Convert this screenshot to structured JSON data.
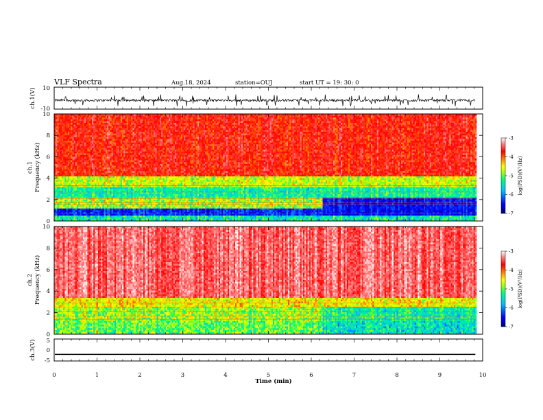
{
  "header": {
    "title": "VLF Spectra",
    "date": "Aug.18, 2024",
    "station": "station=OUJ",
    "start": "start  UT =   19: 30: 0"
  },
  "colors": {
    "waveform": "#000000",
    "colormap": [
      "#00007f",
      "#0000ff",
      "#00bfff",
      "#00ff80",
      "#b0ff00",
      "#ffff00",
      "#ff8000",
      "#ff0000",
      "#ff6060",
      "#ffffff"
    ]
  },
  "chart_data": [
    {
      "type": "line",
      "name": "ch1-waveform",
      "ylabel": "ch.1(V)",
      "ylim": [
        -10,
        10
      ],
      "yticks": [
        "10",
        "-10"
      ],
      "baseline": -2,
      "noise_range": [
        -4.5,
        0.5
      ]
    },
    {
      "type": "heatmap",
      "name": "ch1-spectrogram",
      "ylabel": "ch.1\nFrequency (kHz)",
      "ylabel_lines": [
        "ch.1",
        "Frequency (kHz)"
      ],
      "ylim": [
        0,
        10
      ],
      "yticks": [
        "0",
        "2",
        "4",
        "6",
        "8",
        "10"
      ],
      "colorbar": {
        "label": "log(PSD)(V²/Hz)",
        "ticks": [
          "-3",
          "-4",
          "-5",
          "-6",
          "-7"
        ],
        "range": [
          -7,
          -3
        ]
      },
      "band_change_minute": 6.25
    },
    {
      "type": "heatmap",
      "name": "ch2-spectrogram",
      "ylabel_lines": [
        "ch.2",
        "Frequency (kHz)"
      ],
      "ylim": [
        0,
        10
      ],
      "yticks": [
        "0",
        "2",
        "4",
        "6",
        "8",
        "10"
      ],
      "colorbar": {
        "label": "log(PSD)(V²/Hz)",
        "ticks": [
          "-3",
          "-4",
          "-5",
          "-6",
          "-7"
        ],
        "range": [
          -7,
          -3
        ]
      },
      "band_change_minute": 6.25
    },
    {
      "type": "line",
      "name": "ch3-waveform",
      "ylabel": "ch.3(V)",
      "ylim": [
        -5,
        5
      ],
      "yticks": [
        "5",
        "0",
        "-5"
      ],
      "value": -2
    }
  ],
  "xaxis": {
    "label": "Time (min)",
    "range": [
      0,
      10
    ],
    "ticks": [
      "0",
      "1",
      "2",
      "3",
      "4",
      "5",
      "6",
      "7",
      "8",
      "9",
      "10"
    ],
    "data_end": 9.83
  }
}
